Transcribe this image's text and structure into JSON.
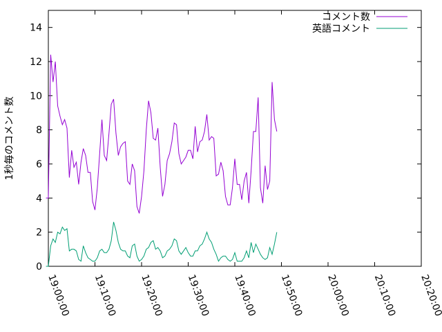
{
  "chart_data": {
    "type": "line",
    "title": "",
    "xlabel": "",
    "ylabel": "1秒毎のコメント数",
    "xlim": [
      "19:00:00",
      "20:20:00"
    ],
    "ylim": [
      0,
      15
    ],
    "x_ticks": [
      "19:00:00",
      "19:10:00",
      "19:20:00",
      "19:30:00",
      "19:40:00",
      "19:50:00",
      "20:00:00",
      "20:10:00",
      "20:20:00"
    ],
    "y_ticks": [
      "0",
      "2",
      "4",
      "6",
      "8",
      "10",
      "12",
      "14"
    ],
    "grid": false,
    "legend_position": "top-right",
    "series": [
      {
        "name": "コメント数",
        "color": "#9400d3",
        "points": [
          [
            "18:59:30",
            4.0
          ],
          [
            "19:00:00",
            4.0
          ],
          [
            "19:00:30",
            12.4
          ],
          [
            "19:01:00",
            10.8
          ],
          [
            "19:01:30",
            12.0
          ],
          [
            "19:02:00",
            9.4
          ],
          [
            "19:02:30",
            8.8
          ],
          [
            "19:03:00",
            8.3
          ],
          [
            "19:03:30",
            8.6
          ],
          [
            "19:04:00",
            8.1
          ],
          [
            "19:04:30",
            5.2
          ],
          [
            "19:05:00",
            6.8
          ],
          [
            "19:05:30",
            5.8
          ],
          [
            "19:06:00",
            6.1
          ],
          [
            "19:06:30",
            4.8
          ],
          [
            "19:07:00",
            6.1
          ],
          [
            "19:07:30",
            6.9
          ],
          [
            "19:08:00",
            6.5
          ],
          [
            "19:08:30",
            5.5
          ],
          [
            "19:09:00",
            5.5
          ],
          [
            "19:09:30",
            3.8
          ],
          [
            "19:10:00",
            3.3
          ],
          [
            "19:10:30",
            4.6
          ],
          [
            "19:11:00",
            6.6
          ],
          [
            "19:11:30",
            8.6
          ],
          [
            "19:12:00",
            6.5
          ],
          [
            "19:12:30",
            6.2
          ],
          [
            "19:13:00",
            7.8
          ],
          [
            "19:13:30",
            9.5
          ],
          [
            "19:14:00",
            9.8
          ],
          [
            "19:14:30",
            7.8
          ],
          [
            "19:15:00",
            6.5
          ],
          [
            "19:15:30",
            7.0
          ],
          [
            "19:16:00",
            7.2
          ],
          [
            "19:16:30",
            7.3
          ],
          [
            "19:17:00",
            5.0
          ],
          [
            "19:17:30",
            4.8
          ],
          [
            "19:18:00",
            6.0
          ],
          [
            "19:18:30",
            5.6
          ],
          [
            "19:19:00",
            3.5
          ],
          [
            "19:19:30",
            3.1
          ],
          [
            "19:20:00",
            4.1
          ],
          [
            "19:20:30",
            5.6
          ],
          [
            "19:21:00",
            8.0
          ],
          [
            "19:21:30",
            9.7
          ],
          [
            "19:22:00",
            9.0
          ],
          [
            "19:22:30",
            7.5
          ],
          [
            "19:23:00",
            7.4
          ],
          [
            "19:23:30",
            8.1
          ],
          [
            "19:24:00",
            5.8
          ],
          [
            "19:24:30",
            4.1
          ],
          [
            "19:25:00",
            4.8
          ],
          [
            "19:25:30",
            6.2
          ],
          [
            "19:26:00",
            6.6
          ],
          [
            "19:26:30",
            7.3
          ],
          [
            "19:27:00",
            8.4
          ],
          [
            "19:27:30",
            8.3
          ],
          [
            "19:28:00",
            6.6
          ],
          [
            "19:28:30",
            6.0
          ],
          [
            "19:29:00",
            6.2
          ],
          [
            "19:29:30",
            6.4
          ],
          [
            "19:30:00",
            6.8
          ],
          [
            "19:30:30",
            6.8
          ],
          [
            "19:31:00",
            6.3
          ],
          [
            "19:31:30",
            8.2
          ],
          [
            "19:32:00",
            6.7
          ],
          [
            "19:32:30",
            7.3
          ],
          [
            "19:33:00",
            7.4
          ],
          [
            "19:33:30",
            7.9
          ],
          [
            "19:34:00",
            8.9
          ],
          [
            "19:34:30",
            7.4
          ],
          [
            "19:35:00",
            7.6
          ],
          [
            "19:35:30",
            7.5
          ],
          [
            "19:36:00",
            5.3
          ],
          [
            "19:36:30",
            5.4
          ],
          [
            "19:37:00",
            6.1
          ],
          [
            "19:37:30",
            5.6
          ],
          [
            "19:38:00",
            4.1
          ],
          [
            "19:38:30",
            3.6
          ],
          [
            "19:39:00",
            3.6
          ],
          [
            "19:39:30",
            4.6
          ],
          [
            "19:40:00",
            6.3
          ],
          [
            "19:40:30",
            4.8
          ],
          [
            "19:41:00",
            4.8
          ],
          [
            "19:41:30",
            3.9
          ],
          [
            "19:42:00",
            5.0
          ],
          [
            "19:42:30",
            5.5
          ],
          [
            "19:43:00",
            3.7
          ],
          [
            "19:43:30",
            5.6
          ],
          [
            "19:44:00",
            7.9
          ],
          [
            "19:44:30",
            7.9
          ],
          [
            "19:45:00",
            9.9
          ],
          [
            "19:45:30",
            4.6
          ],
          [
            "19:46:00",
            3.7
          ],
          [
            "19:46:30",
            5.9
          ],
          [
            "19:47:00",
            4.5
          ],
          [
            "19:47:30",
            5.0
          ],
          [
            "19:48:00",
            10.8
          ],
          [
            "19:48:30",
            8.6
          ],
          [
            "19:49:00",
            7.9
          ]
        ]
      },
      {
        "name": "英語コメント",
        "color": "#009e73",
        "points": [
          [
            "18:59:30",
            0.0
          ],
          [
            "19:00:00",
            0.0
          ],
          [
            "19:00:30",
            1.2
          ],
          [
            "19:01:00",
            1.6
          ],
          [
            "19:01:30",
            1.4
          ],
          [
            "19:02:00",
            2.0
          ],
          [
            "19:02:30",
            1.9
          ],
          [
            "19:03:00",
            2.3
          ],
          [
            "19:03:30",
            2.1
          ],
          [
            "19:04:00",
            2.2
          ],
          [
            "19:04:30",
            0.9
          ],
          [
            "19:05:00",
            1.0
          ],
          [
            "19:05:30",
            1.0
          ],
          [
            "19:06:00",
            0.9
          ],
          [
            "19:06:30",
            0.4
          ],
          [
            "19:07:00",
            0.3
          ],
          [
            "19:07:30",
            1.2
          ],
          [
            "19:08:00",
            0.8
          ],
          [
            "19:08:30",
            0.5
          ],
          [
            "19:09:00",
            0.4
          ],
          [
            "19:09:30",
            0.3
          ],
          [
            "19:10:00",
            0.3
          ],
          [
            "19:10:30",
            0.5
          ],
          [
            "19:11:00",
            0.9
          ],
          [
            "19:11:30",
            1.0
          ],
          [
            "19:12:00",
            0.8
          ],
          [
            "19:12:30",
            0.8
          ],
          [
            "19:13:00",
            1.0
          ],
          [
            "19:13:30",
            1.5
          ],
          [
            "19:14:00",
            2.6
          ],
          [
            "19:14:30",
            2.1
          ],
          [
            "19:15:00",
            1.4
          ],
          [
            "19:15:30",
            1.0
          ],
          [
            "19:16:00",
            0.9
          ],
          [
            "19:16:30",
            0.9
          ],
          [
            "19:17:00",
            0.6
          ],
          [
            "19:17:30",
            0.5
          ],
          [
            "19:18:00",
            1.2
          ],
          [
            "19:18:30",
            1.3
          ],
          [
            "19:19:00",
            0.6
          ],
          [
            "19:19:30",
            0.3
          ],
          [
            "19:20:00",
            0.4
          ],
          [
            "19:20:30",
            0.6
          ],
          [
            "19:21:00",
            1.0
          ],
          [
            "19:21:30",
            1.1
          ],
          [
            "19:22:00",
            1.4
          ],
          [
            "19:22:30",
            1.5
          ],
          [
            "19:23:00",
            1.0
          ],
          [
            "19:23:30",
            1.1
          ],
          [
            "19:24:00",
            0.9
          ],
          [
            "19:24:30",
            0.5
          ],
          [
            "19:25:00",
            0.6
          ],
          [
            "19:25:30",
            0.9
          ],
          [
            "19:26:00",
            1.0
          ],
          [
            "19:26:30",
            1.2
          ],
          [
            "19:27:00",
            1.6
          ],
          [
            "19:27:30",
            1.5
          ],
          [
            "19:28:00",
            0.9
          ],
          [
            "19:28:30",
            0.7
          ],
          [
            "19:29:00",
            0.9
          ],
          [
            "19:29:30",
            1.1
          ],
          [
            "19:30:00",
            0.8
          ],
          [
            "19:30:30",
            0.6
          ],
          [
            "19:31:00",
            0.6
          ],
          [
            "19:31:30",
            0.9
          ],
          [
            "19:32:00",
            0.9
          ],
          [
            "19:32:30",
            1.2
          ],
          [
            "19:33:00",
            1.3
          ],
          [
            "19:33:30",
            1.6
          ],
          [
            "19:34:00",
            2.0
          ],
          [
            "19:34:30",
            1.6
          ],
          [
            "19:35:00",
            1.4
          ],
          [
            "19:35:30",
            1.0
          ],
          [
            "19:36:00",
            0.7
          ],
          [
            "19:36:30",
            0.3
          ],
          [
            "19:37:00",
            0.5
          ],
          [
            "19:37:30",
            0.6
          ],
          [
            "19:38:00",
            0.6
          ],
          [
            "19:38:30",
            0.4
          ],
          [
            "19:39:00",
            0.3
          ],
          [
            "19:39:30",
            0.4
          ],
          [
            "19:40:00",
            0.8
          ],
          [
            "19:40:30",
            0.3
          ],
          [
            "19:41:00",
            0.3
          ],
          [
            "19:41:30",
            0.3
          ],
          [
            "19:42:00",
            0.5
          ],
          [
            "19:42:30",
            0.9
          ],
          [
            "19:43:00",
            0.5
          ],
          [
            "19:43:30",
            1.4
          ],
          [
            "19:44:00",
            0.8
          ],
          [
            "19:44:30",
            1.3
          ],
          [
            "19:45:00",
            1.0
          ],
          [
            "19:45:30",
            0.7
          ],
          [
            "19:46:00",
            0.5
          ],
          [
            "19:46:30",
            0.4
          ],
          [
            "19:47:00",
            0.5
          ],
          [
            "19:47:30",
            1.1
          ],
          [
            "19:48:00",
            0.7
          ],
          [
            "19:48:30",
            1.3
          ],
          [
            "19:49:00",
            2.0
          ]
        ]
      }
    ]
  }
}
